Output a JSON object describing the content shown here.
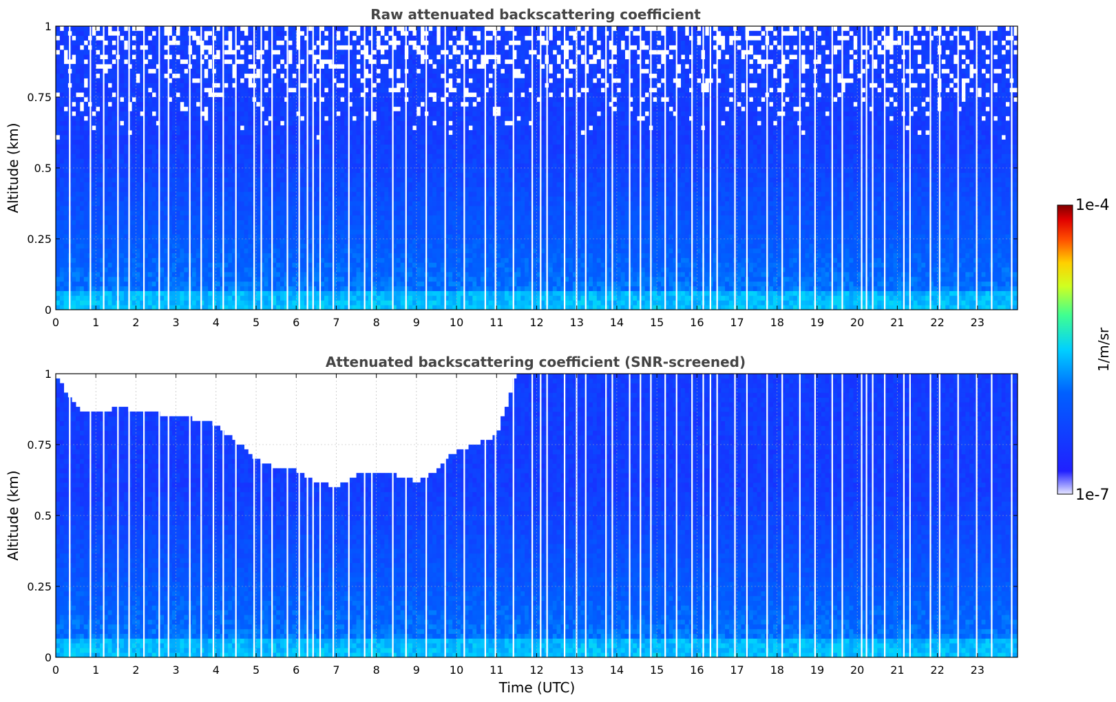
{
  "figure": {
    "colorbar": {
      "label": "1/m/sr",
      "max_label": "1e-4",
      "min_label": "1e-7",
      "scale": "log",
      "range": [
        1e-07,
        0.0001
      ],
      "colormap": "jet"
    }
  },
  "chart_data": [
    {
      "type": "heatmap",
      "title": "Raw attenuated backscattering coefficient",
      "xlabel": "",
      "ylabel": "Altitude (km)",
      "xlim": [
        0,
        24
      ],
      "ylim": [
        0,
        1
      ],
      "xticks": [
        "0",
        "1",
        "2",
        "3",
        "4",
        "5",
        "6",
        "7",
        "8",
        "9",
        "10",
        "11",
        "12",
        "13",
        "14",
        "15",
        "16",
        "17",
        "18",
        "19",
        "20",
        "21",
        "22",
        "23"
      ],
      "yticks": [
        "0",
        "0.25",
        "0.5",
        "0.75",
        "1"
      ],
      "grid": true,
      "field": {
        "unit": "1/m/sr",
        "typical_log10_surface": -5.8,
        "typical_log10_upper": -6.4,
        "noisy_above_km": 0.6
      }
    },
    {
      "type": "heatmap",
      "title": "Attenuated backscattering coefficient (SNR-screened)",
      "xlabel": "Time (UTC)",
      "ylabel": "Altitude (km)",
      "xlim": [
        0,
        24
      ],
      "ylim": [
        0,
        1
      ],
      "xticks": [
        "0",
        "1",
        "2",
        "3",
        "4",
        "5",
        "6",
        "7",
        "8",
        "9",
        "10",
        "11",
        "12",
        "13",
        "14",
        "15",
        "16",
        "17",
        "18",
        "19",
        "20",
        "21",
        "22",
        "23"
      ],
      "yticks": [
        "0",
        "0.25",
        "0.5",
        "0.75",
        "1"
      ],
      "grid": true,
      "screened_top_km": [
        [
          0.0,
          1.0
        ],
        [
          0.5,
          0.88
        ],
        [
          1.0,
          0.86
        ],
        [
          1.5,
          0.88
        ],
        [
          2.0,
          0.87
        ],
        [
          2.5,
          0.86
        ],
        [
          3.0,
          0.85
        ],
        [
          3.5,
          0.84
        ],
        [
          4.0,
          0.82
        ],
        [
          4.5,
          0.76
        ],
        [
          5.0,
          0.7
        ],
        [
          5.5,
          0.67
        ],
        [
          6.0,
          0.66
        ],
        [
          6.5,
          0.62
        ],
        [
          7.0,
          0.6
        ],
        [
          7.5,
          0.64
        ],
        [
          8.0,
          0.66
        ],
        [
          8.5,
          0.64
        ],
        [
          9.0,
          0.62
        ],
        [
          9.5,
          0.66
        ],
        [
          10.0,
          0.73
        ],
        [
          10.5,
          0.75
        ],
        [
          11.0,
          0.78
        ],
        [
          11.5,
          1.0
        ],
        [
          24.0,
          1.0
        ]
      ]
    }
  ]
}
